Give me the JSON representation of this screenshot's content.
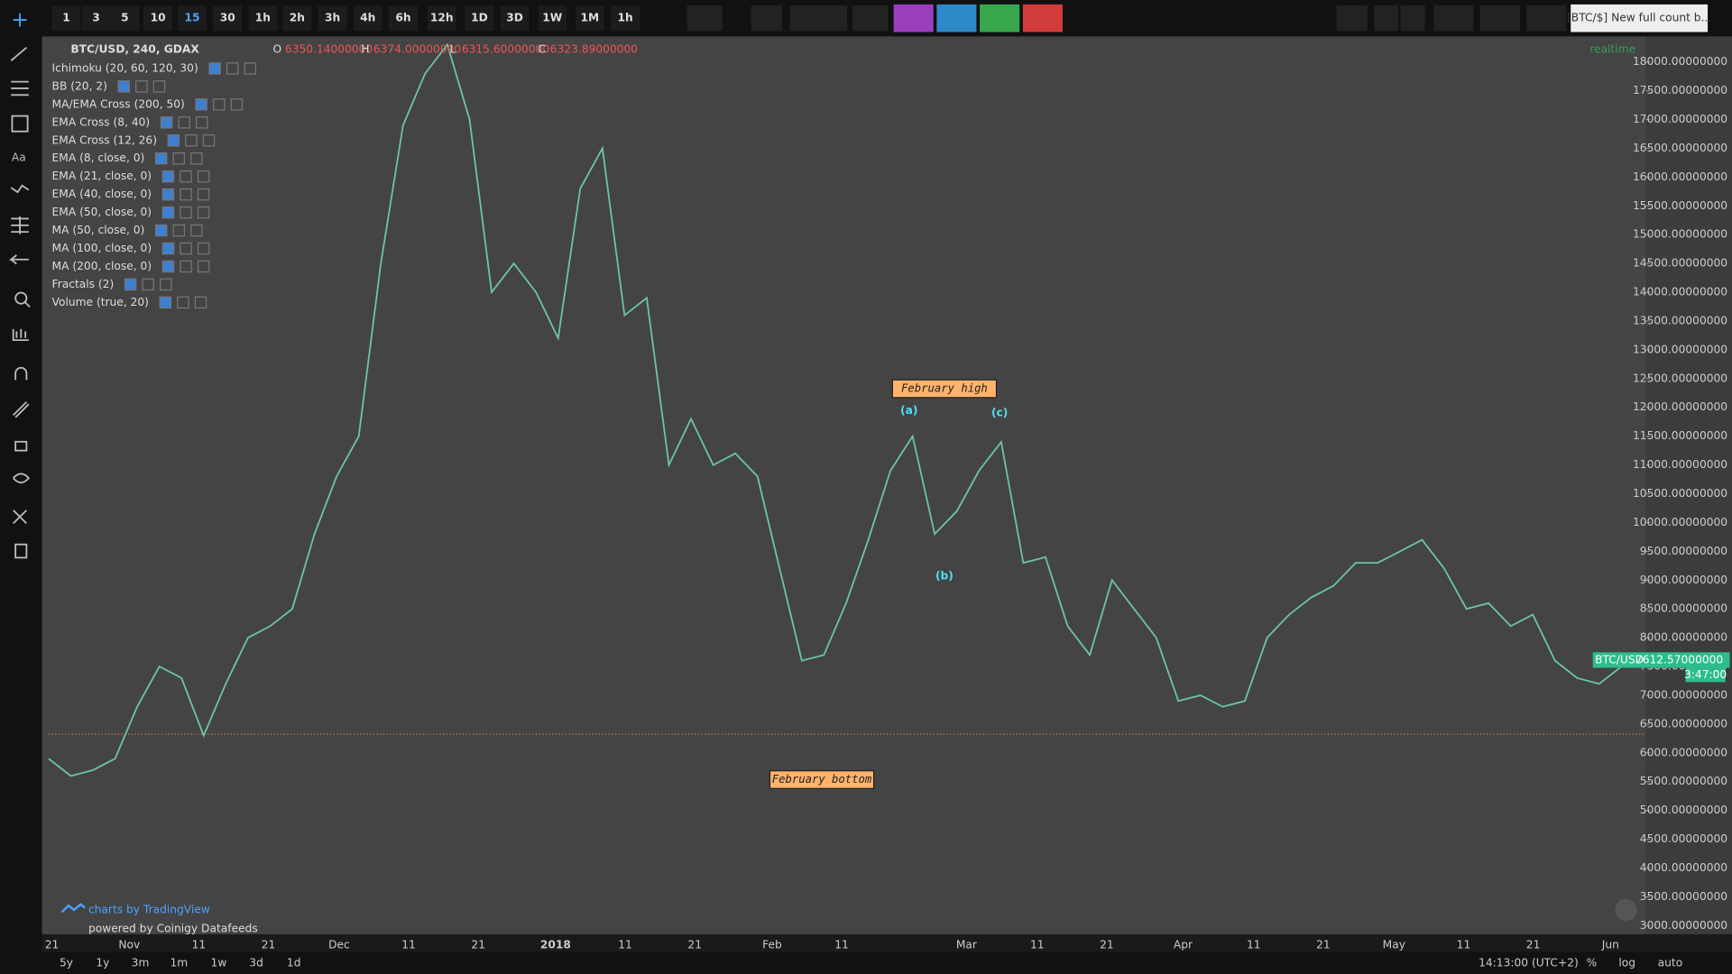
{
  "toolbar": {
    "intervals": [
      "1",
      "3",
      "5",
      "10",
      "15",
      "30",
      "1h",
      "2h",
      "3h",
      "4h",
      "6h",
      "12h",
      "1D",
      "3D",
      "1W",
      "1M",
      "1h"
    ],
    "active_index": 4,
    "tab_title": "[BTC/$] New full count b..."
  },
  "legend": {
    "symbol": "BTC/USD, 240, GDAX",
    "indicators": [
      "Ichimoku (20, 60, 120, 30)",
      "BB (20, 2)",
      "MA/EMA Cross (200, 50)",
      "EMA Cross (8, 40)",
      "EMA Cross (12, 26)",
      "EMA (8, close, 0)",
      "EMA (21, close, 0)",
      "EMA (40, close, 0)",
      "EMA (50, close, 0)",
      "MA (50, close, 0)",
      "MA (100, close, 0)",
      "MA (200, close, 0)",
      "Fractals (2)",
      "Volume (true, 20)"
    ]
  },
  "chart_data": {
    "type": "line",
    "ohlc": [
      {
        "name": "O",
        "value": 6350.14,
        "label": "6350.14000000"
      },
      {
        "name": "H",
        "value": 6374,
        "label": "6374.00000000"
      },
      {
        "name": "L",
        "value": 6315.6,
        "label": "6315.60000000"
      },
      {
        "name": "C",
        "value": 6323.89,
        "label": "6323.89000000"
      }
    ],
    "series": [
      {
        "name": "BTC/USD",
        "color": "#6cc3a0",
        "values": [
          5900,
          5600,
          5700,
          5900,
          6800,
          7500,
          7300,
          6300,
          7200,
          8000,
          8200,
          8500,
          9800,
          10800,
          11500,
          14500,
          16900,
          17800,
          18300,
          17000,
          14000,
          14500,
          14000,
          13200,
          15800,
          16500,
          13600,
          13900,
          11000,
          11800,
          11000,
          11200,
          10800,
          9200,
          7600,
          7700,
          8600,
          9700,
          10900,
          11500,
          9800,
          10200,
          10900,
          11400,
          9300,
          9400,
          8200,
          7700,
          9000,
          8500,
          8000,
          6900,
          7000,
          6800,
          6900,
          8000,
          8400,
          8700,
          8900,
          9300,
          9300,
          9500,
          9700,
          9200,
          8500,
          8600,
          8200,
          8400,
          7600,
          7300,
          7200,
          7500,
          7613
        ]
      }
    ],
    "last_price": {
      "value": 7612.57,
      "label": "7612.57000000"
    },
    "countdown": "3:47:00",
    "status": "realtime",
    "ylim": [
      2850,
      18500
    ],
    "yticks": [
      {
        "value": 3000,
        "label": "3000.00000000"
      },
      {
        "value": 3500,
        "label": "3500.00000000"
      },
      {
        "value": 4000,
        "label": "4000.00000000"
      },
      {
        "value": 4500,
        "label": "4500.00000000"
      },
      {
        "value": 5000,
        "label": "5000.00000000"
      },
      {
        "value": 5500,
        "label": "5500.00000000"
      },
      {
        "value": 6000,
        "label": "6000.00000000"
      },
      {
        "value": 6500,
        "label": "6500.00000000"
      },
      {
        "value": 7000,
        "label": "7000.00000000"
      },
      {
        "value": 7500,
        "label": "7500.00000000"
      },
      {
        "value": 8000,
        "label": "8000.00000000"
      },
      {
        "value": 8500,
        "label": "8500.00000000"
      },
      {
        "value": 9000,
        "label": "9000.00000000"
      },
      {
        "value": 9500,
        "label": "9500.00000000"
      },
      {
        "value": 10000,
        "label": "10000.00000000"
      },
      {
        "value": 10500,
        "label": "10500.00000000"
      },
      {
        "value": 11000,
        "label": "11000.00000000"
      },
      {
        "value": 11500,
        "label": "11500.00000000"
      },
      {
        "value": 12000,
        "label": "12000.00000000"
      },
      {
        "value": 12500,
        "label": "12500.00000000"
      },
      {
        "value": 13000,
        "label": "13000.00000000"
      },
      {
        "value": 13500,
        "label": "13500.00000000"
      },
      {
        "value": 14000,
        "label": "14000.00000000"
      },
      {
        "value": 14500,
        "label": "14500.00000000"
      },
      {
        "value": 15000,
        "label": "15000.00000000"
      },
      {
        "value": 15500,
        "label": "15500.00000000"
      },
      {
        "value": 16000,
        "label": "16000.00000000"
      },
      {
        "value": 16500,
        "label": "16500.00000000"
      },
      {
        "value": 17000,
        "label": "17000.00000000"
      },
      {
        "value": 17500,
        "label": "17500.00000000"
      },
      {
        "value": 18000,
        "label": "18000.00000000"
      }
    ],
    "x_labels": [
      "21",
      "Nov",
      "11",
      "21",
      "Dec",
      "11",
      "21",
      "2018",
      "11",
      "21",
      "Feb",
      "11",
      "Mar",
      "11",
      "21",
      "Apr",
      "11",
      "21",
      "May",
      "11",
      "21",
      "Jun"
    ],
    "annotations": [
      "February high",
      "(a)",
      "(c)",
      "(b)",
      "February bottom"
    ]
  },
  "bottom": {
    "ranges": [
      "5y",
      "1y",
      "3m",
      "1m",
      "1w",
      "3d",
      "1d"
    ],
    "time": "14:13:00 (UTC+2)",
    "options": [
      "%",
      "log",
      "auto"
    ]
  },
  "branding": {
    "tv": "charts by TradingView",
    "feed": "powered by Coinigy Datafeeds"
  }
}
